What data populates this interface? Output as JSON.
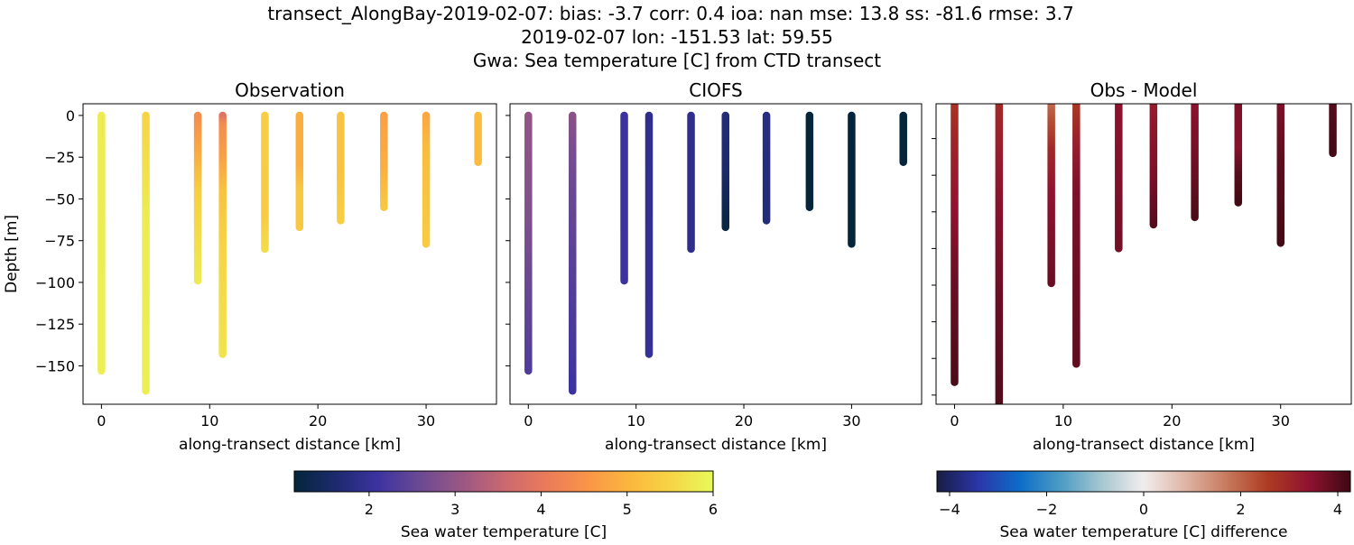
{
  "chart_data": {
    "title_lines": [
      "transect_AlongBay-2019-02-07: bias: -3.7  corr: 0.4  ioa: nan  mse: 13.8  ss: -81.6  rmse: 3.7",
      "2019-02-07 lon: -151.53 lat: 59.55",
      "Gwa: Sea temperature [C] from CTD transect"
    ],
    "panels": [
      {
        "type": "scatter",
        "title": "Observation",
        "xlabel": "along-transect distance [km]",
        "ylabel": "Depth [m]",
        "xlim": [
          -1.7,
          36.5
        ],
        "ylim": [
          -173,
          7
        ],
        "xticks": [
          0,
          10,
          20,
          30
        ],
        "yticks": [
          0,
          -25,
          -50,
          -75,
          -100,
          -125,
          -150
        ],
        "ytick_labels_shown": true,
        "colormap": "thermal",
        "casts": [
          {
            "x": 0,
            "profile": [
              [
                0,
                5.8
              ],
              [
                -153,
                5.85
              ]
            ]
          },
          {
            "x": 4.1,
            "profile": [
              [
                0,
                5.5
              ],
              [
                -20,
                5.6
              ],
              [
                -60,
                5.8
              ],
              [
                -165,
                5.85
              ]
            ]
          },
          {
            "x": 8.9,
            "profile": [
              [
                0,
                4.4
              ],
              [
                -20,
                4.8
              ],
              [
                -45,
                5.4
              ],
              [
                -99,
                5.8
              ]
            ]
          },
          {
            "x": 11.2,
            "profile": [
              [
                0,
                3.9
              ],
              [
                -5,
                4.4
              ],
              [
                -25,
                4.7
              ],
              [
                -45,
                5.2
              ],
              [
                -80,
                5.5
              ],
              [
                -143,
                5.7
              ]
            ]
          },
          {
            "x": 15.1,
            "profile": [
              [
                0,
                5.4
              ],
              [
                -60,
                5.35
              ],
              [
                -80,
                5.6
              ]
            ]
          },
          {
            "x": 18.3,
            "profile": [
              [
                0,
                4.9
              ],
              [
                -30,
                4.9
              ],
              [
                -45,
                5.3
              ],
              [
                -67,
                5.3
              ]
            ]
          },
          {
            "x": 22.1,
            "profile": [
              [
                0,
                5.2
              ],
              [
                -30,
                5.2
              ],
              [
                -63,
                5.4
              ]
            ]
          },
          {
            "x": 26.1,
            "profile": [
              [
                0,
                4.7
              ],
              [
                -30,
                4.9
              ],
              [
                -55,
                5.3
              ]
            ]
          },
          {
            "x": 30,
            "profile": [
              [
                0,
                4.8
              ],
              [
                -20,
                5.1
              ],
              [
                -77,
                5.35
              ]
            ]
          },
          {
            "x": 34.8,
            "profile": [
              [
                0,
                5.1
              ],
              [
                -28,
                5.1
              ]
            ]
          }
        ]
      },
      {
        "type": "scatter",
        "title": "CIOFS",
        "xlabel": "along-transect distance [km]",
        "xlim": [
          -1.7,
          36.5
        ],
        "ylim": [
          -173,
          7
        ],
        "xticks": [
          0,
          10,
          20,
          30
        ],
        "yticks": [
          0,
          -25,
          -50,
          -75,
          -100,
          -125,
          -150
        ],
        "ytick_labels_shown": false,
        "colormap": "thermal",
        "casts": [
          {
            "x": 0,
            "profile": [
              [
                0,
                3.0
              ],
              [
                -60,
                2.8
              ],
              [
                -153,
                2.3
              ]
            ]
          },
          {
            "x": 4.1,
            "profile": [
              [
                0,
                2.9
              ],
              [
                -40,
                2.6
              ],
              [
                -165,
                2.1
              ]
            ]
          },
          {
            "x": 8.9,
            "profile": [
              [
                0,
                2.1
              ],
              [
                -99,
                2.1
              ]
            ]
          },
          {
            "x": 11.2,
            "profile": [
              [
                0,
                1.9
              ],
              [
                -143,
                2.0
              ]
            ]
          },
          {
            "x": 15.1,
            "profile": [
              [
                0,
                1.9
              ],
              [
                -80,
                1.9
              ]
            ]
          },
          {
            "x": 18.3,
            "profile": [
              [
                0,
                1.7
              ],
              [
                -30,
                1.6
              ],
              [
                -67,
                1.2
              ]
            ]
          },
          {
            "x": 22.1,
            "profile": [
              [
                0,
                1.8
              ],
              [
                -63,
                1.7
              ]
            ]
          },
          {
            "x": 26.1,
            "profile": [
              [
                0,
                1.1
              ],
              [
                -55,
                1.1
              ]
            ]
          },
          {
            "x": 30,
            "profile": [
              [
                0,
                1.15
              ],
              [
                -77,
                1.1
              ]
            ]
          },
          {
            "x": 34.8,
            "profile": [
              [
                0,
                1.1
              ],
              [
                -28,
                1.1
              ]
            ]
          }
        ]
      },
      {
        "type": "scatter",
        "title": "Obs - Model",
        "xlabel": "along-transect distance [km]",
        "xlim": [
          -1.7,
          36.5
        ],
        "ylim": [
          -165,
          -1
        ],
        "xticks": [
          0,
          10,
          20,
          30
        ],
        "yticks": [
          -20,
          -40,
          -60,
          -80,
          -100,
          -120,
          -140,
          -160
        ],
        "ytick_labels_shown": false,
        "colormap": "balance",
        "casts": [
          {
            "x": 0,
            "profile": [
              [
                0,
                2.7
              ],
              [
                -20,
                3.0
              ],
              [
                -60,
                3.4
              ],
              [
                -100,
                3.8
              ],
              [
                -153,
                4.1
              ]
            ]
          },
          {
            "x": 4.1,
            "profile": [
              [
                0,
                2.9
              ],
              [
                -30,
                3.2
              ],
              [
                -60,
                3.5
              ],
              [
                -110,
                3.8
              ],
              [
                -175,
                4.1
              ]
            ]
          },
          {
            "x": 8.9,
            "profile": [
              [
                0,
                1.9
              ],
              [
                -10,
                2.3
              ],
              [
                -25,
                2.9
              ],
              [
                -50,
                3.4
              ],
              [
                -99,
                3.8
              ]
            ]
          },
          {
            "x": 11.2,
            "profile": [
              [
                0,
                2.6
              ],
              [
                -25,
                3.2
              ],
              [
                -50,
                3.6
              ],
              [
                -143,
                3.9
              ]
            ]
          },
          {
            "x": 15.1,
            "profile": [
              [
                0,
                3.4
              ],
              [
                -80,
                3.7
              ]
            ]
          },
          {
            "x": 18.3,
            "profile": [
              [
                0,
                3.2
              ],
              [
                -40,
                3.6
              ],
              [
                -67,
                4.0
              ]
            ]
          },
          {
            "x": 22.1,
            "profile": [
              [
                0,
                3.4
              ],
              [
                -40,
                3.8
              ],
              [
                -63,
                4.1
              ]
            ]
          },
          {
            "x": 26.1,
            "profile": [
              [
                0,
                3.6
              ],
              [
                -25,
                3.5
              ],
              [
                -40,
                4.0
              ],
              [
                -55,
                4.2
              ]
            ]
          },
          {
            "x": 30,
            "profile": [
              [
                0,
                3.6
              ],
              [
                -30,
                3.9
              ],
              [
                -77,
                4.2
              ]
            ]
          },
          {
            "x": 34.8,
            "profile": [
              [
                0,
                4.0
              ],
              [
                -28,
                4.2
              ]
            ]
          }
        ]
      }
    ],
    "colorbars": [
      {
        "label": "Sea water temperature [C]",
        "colormap": "thermal",
        "range": [
          1.13,
          6.0
        ],
        "ticks": [
          2,
          3,
          4,
          5,
          6
        ]
      },
      {
        "label": "Sea water temperature [C] difference",
        "colormap": "balance",
        "range": [
          -4.26,
          4.26
        ],
        "ticks": [
          -4,
          -2,
          0,
          2,
          4
        ],
        "tick_labels": [
          "−4",
          "−2",
          "0",
          "2",
          "4"
        ]
      }
    ],
    "colormaps": {
      "thermal": [
        "#04253a",
        "#1d2a6e",
        "#3c33a0",
        "#6b4a92",
        "#9a5784",
        "#c96870",
        "#ea7a5a",
        "#f99448",
        "#fbb73d",
        "#f6d545",
        "#e7fa5a"
      ],
      "balance": [
        "#181c43",
        "#2b36a8",
        "#0c6dc8",
        "#4c9cc4",
        "#a8c8d0",
        "#f1eded",
        "#dfb5a6",
        "#c77a5e",
        "#ad3b22",
        "#8f1230",
        "#3c0912"
      ]
    }
  }
}
